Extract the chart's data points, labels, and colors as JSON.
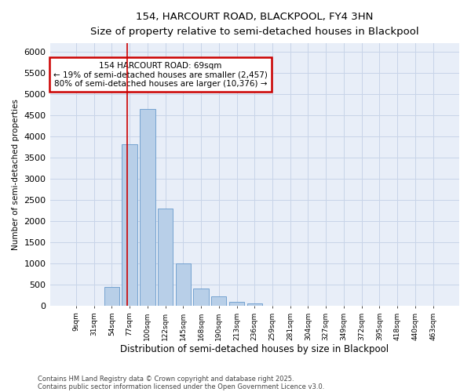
{
  "title1": "154, HARCOURT ROAD, BLACKPOOL, FY4 3HN",
  "title2": "Size of property relative to semi-detached houses in Blackpool",
  "xlabel": "Distribution of semi-detached houses by size in Blackpool",
  "ylabel": "Number of semi-detached properties",
  "categories": [
    "9sqm",
    "31sqm",
    "54sqm",
    "77sqm",
    "100sqm",
    "122sqm",
    "145sqm",
    "168sqm",
    "190sqm",
    "213sqm",
    "236sqm",
    "259sqm",
    "281sqm",
    "304sqm",
    "327sqm",
    "349sqm",
    "372sqm",
    "395sqm",
    "418sqm",
    "440sqm",
    "463sqm"
  ],
  "values": [
    0,
    0,
    450,
    3820,
    4650,
    2300,
    1000,
    400,
    230,
    100,
    60,
    0,
    0,
    0,
    0,
    0,
    0,
    0,
    0,
    0,
    0
  ],
  "bar_color": "#b8cfe8",
  "bar_edge_color": "#6699cc",
  "annotation_text": "154 HARCOURT ROAD: 69sqm\n← 19% of semi-detached houses are smaller (2,457)\n80% of semi-detached houses are larger (10,376) →",
  "annotation_box_color": "#ffffff",
  "annotation_box_edge_color": "#cc0000",
  "ylim": [
    0,
    6200
  ],
  "grid_color": "#c8d4e8",
  "bg_color": "#ffffff",
  "plot_bg_color": "#e8eef8",
  "footer1": "Contains HM Land Registry data © Crown copyright and database right 2025.",
  "footer2": "Contains public sector information licensed under the Open Government Licence v3.0."
}
